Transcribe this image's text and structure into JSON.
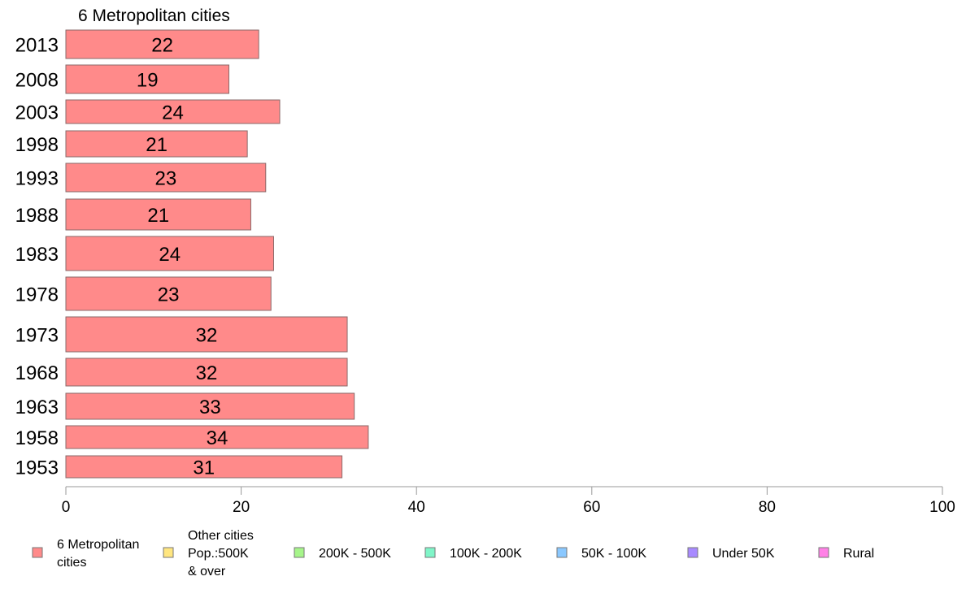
{
  "chart_data": {
    "type": "bar",
    "orientation": "horizontal",
    "title": "6 Metropolitan cities",
    "categories": [
      "2013",
      "2008",
      "2003",
      "1998",
      "1993",
      "1988",
      "1983",
      "1978",
      "1973",
      "1968",
      "1963",
      "1958",
      "1953"
    ],
    "series": [
      {
        "name": "6 Metropolitan cities",
        "color": "#ff8a8a",
        "values": [
          22,
          19,
          24,
          21,
          23,
          21,
          24,
          23,
          32,
          32,
          33,
          34,
          31
        ],
        "bar_values": [
          22,
          18.6,
          24.4,
          20.7,
          22.8,
          21.1,
          23.7,
          23.4,
          32.1,
          32.1,
          32.9,
          34.5,
          31.5
        ]
      }
    ],
    "xlim": [
      0,
      100
    ],
    "xticks": [
      "0",
      "20",
      "40",
      "60",
      "80",
      "100"
    ],
    "grid": false,
    "legend_position": "bottom",
    "legend": [
      {
        "lines": [
          "6 Metropolitan",
          " cities"
        ],
        "color": "#ff8a8a"
      },
      {
        "lines": [
          "Other cities",
          "Pop.:500K",
          " & over"
        ],
        "color": "#ffe680"
      },
      {
        "lines": [
          "200K - 500K"
        ],
        "color": "#a6f58a"
      },
      {
        "lines": [
          "100K - 200K"
        ],
        "color": "#80f5c8"
      },
      {
        "lines": [
          "50K - 100K"
        ],
        "color": "#8ac8ff"
      },
      {
        "lines": [
          "Under 50K"
        ],
        "color": "#a88aff"
      },
      {
        "lines": [
          "Rural"
        ],
        "color": "#ff80e6"
      }
    ]
  }
}
